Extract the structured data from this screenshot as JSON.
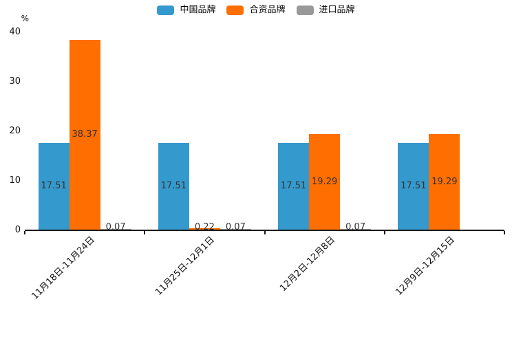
{
  "chart_data": {
    "type": "bar",
    "title": "",
    "xlabel": "",
    "ylabel": "%",
    "ylim": [
      0,
      40
    ],
    "yticks": [
      0,
      10,
      20,
      30,
      40
    ],
    "grid": false,
    "legend_position": "top-center",
    "categories": [
      "11月18日-11月24日",
      "11月25日-12月1日",
      "12月2日-12月8日",
      "12月9日-12月15日"
    ],
    "series": [
      {
        "name": "中国品牌",
        "color": "#3499CC",
        "values": [
          17.51,
          17.51,
          17.51,
          17.51
        ],
        "labels": [
          "17.51",
          "17.51",
          "17.51",
          "17.51"
        ]
      },
      {
        "name": "合资品牌",
        "color": "#FF6E00",
        "values": [
          38.37,
          0.22,
          19.29,
          19.29
        ],
        "labels": [
          "38.37",
          "0.22",
          "19.29",
          "19.29"
        ]
      },
      {
        "name": "进口品牌",
        "color": "#999999",
        "values": [
          0.07,
          0.07,
          0.07,
          null
        ],
        "labels": [
          "0.07",
          "0.07",
          "0.07",
          null
        ]
      }
    ],
    "colors": {
      "axis": "#1a1a1a",
      "value_label": "#333333",
      "tick_label": "#111111"
    }
  }
}
